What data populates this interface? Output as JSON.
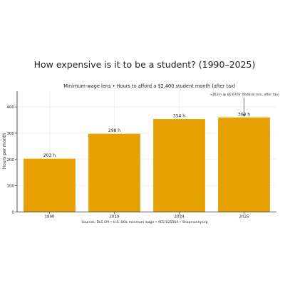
{
  "chart_data": {
    "type": "bar",
    "title": "How expensive is it to be a student? (1990–2025)",
    "subtitle": "Minimum-wage lens • Hours to afford a $2,400 student month (after tax)",
    "xlabel": "",
    "ylabel": "Hours per month",
    "categories": [
      "1990",
      "2019",
      "2024",
      "2025"
    ],
    "values": [
      203,
      298,
      354,
      360
    ],
    "value_labels": [
      "203 h",
      "298 h",
      "354 h",
      "360 h"
    ],
    "ylim": [
      0,
      460
    ],
    "yticks": [
      0,
      100,
      200,
      300,
      400
    ],
    "grid": true,
    "bar_color": "#E6A100",
    "annotation": {
      "text": "~363 h @ $6.67/hr (federal min, after tax)",
      "category": "2025",
      "value": 363
    },
    "source": "Sources: BLS CPI • U.S. DOL minimum wage • ACS B25064 • Shopmoney.org"
  }
}
